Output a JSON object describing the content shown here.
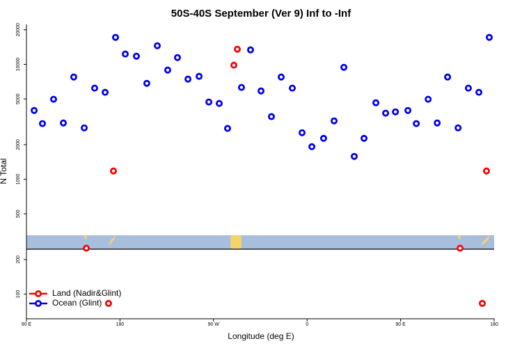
{
  "chart_data": {
    "type": "scatter",
    "title": "50S-40S September (Ver 9)   Inf to -Inf",
    "x_label": "Longitude (deg E)",
    "y_label": "N Total",
    "log_y": true,
    "grid": false,
    "legend_position": "bottom-left",
    "xlim": [
      90,
      540
    ],
    "xticks": [
      {
        "value": 90,
        "label": "90 E"
      },
      {
        "value": 180,
        "label": "180"
      },
      {
        "value": 270,
        "label": "90 W"
      },
      {
        "value": 360,
        "label": "0"
      },
      {
        "value": 450,
        "label": "90 E"
      },
      {
        "value": 540,
        "label": "180"
      }
    ],
    "ylim": [
      61,
      22300
    ],
    "yticks": [
      100,
      200,
      500,
      1000,
      2000,
      5000,
      10000,
      20000
    ],
    "series": [
      {
        "name": "Land (Nadir&Glint)",
        "color": "#ff0000",
        "x": [
          147.6,
          169.0,
          173.7,
          289.6,
          292.9,
          507.2,
          528.6,
          532.6
        ],
        "values": [
          251,
          83,
          1180,
          9840,
          13550,
          251,
          83,
          1180
        ]
      },
      {
        "name": "Ocean (Glint)",
        "color": "#0000ee",
        "x": [
          97.4,
          105.4,
          116.1,
          125.5,
          135.5,
          145.6,
          155.6,
          165.7,
          175.7,
          185.1,
          195.8,
          205.8,
          215.9,
          225.9,
          235.3,
          245.4,
          256.1,
          265.5,
          275.5,
          283.5,
          296.9,
          305.6,
          315.7,
          325.7,
          335.1,
          345.8,
          355.2,
          364.6,
          375.9,
          386.0,
          395.4,
          405.4,
          414.8,
          426.2,
          435.6,
          445.0,
          457.0,
          465.1,
          476.5,
          485.2,
          495.2,
          505.3,
          515.2,
          525.3,
          535.3
        ],
        "values": [
          3970,
          3050,
          4970,
          3090,
          7760,
          2800,
          6210,
          5710,
          17180,
          12300,
          11780,
          6840,
          14530,
          8920,
          11460,
          7440,
          7870,
          4700,
          4570,
          2770,
          6300,
          13370,
          5870,
          3510,
          7760,
          6210,
          2540,
          1920,
          2270,
          3220,
          9430,
          1580,
          2270,
          4630,
          3760,
          3860,
          3970,
          3050,
          4970,
          3090,
          7760,
          2800,
          6210,
          5710,
          17180
        ]
      }
    ]
  }
}
